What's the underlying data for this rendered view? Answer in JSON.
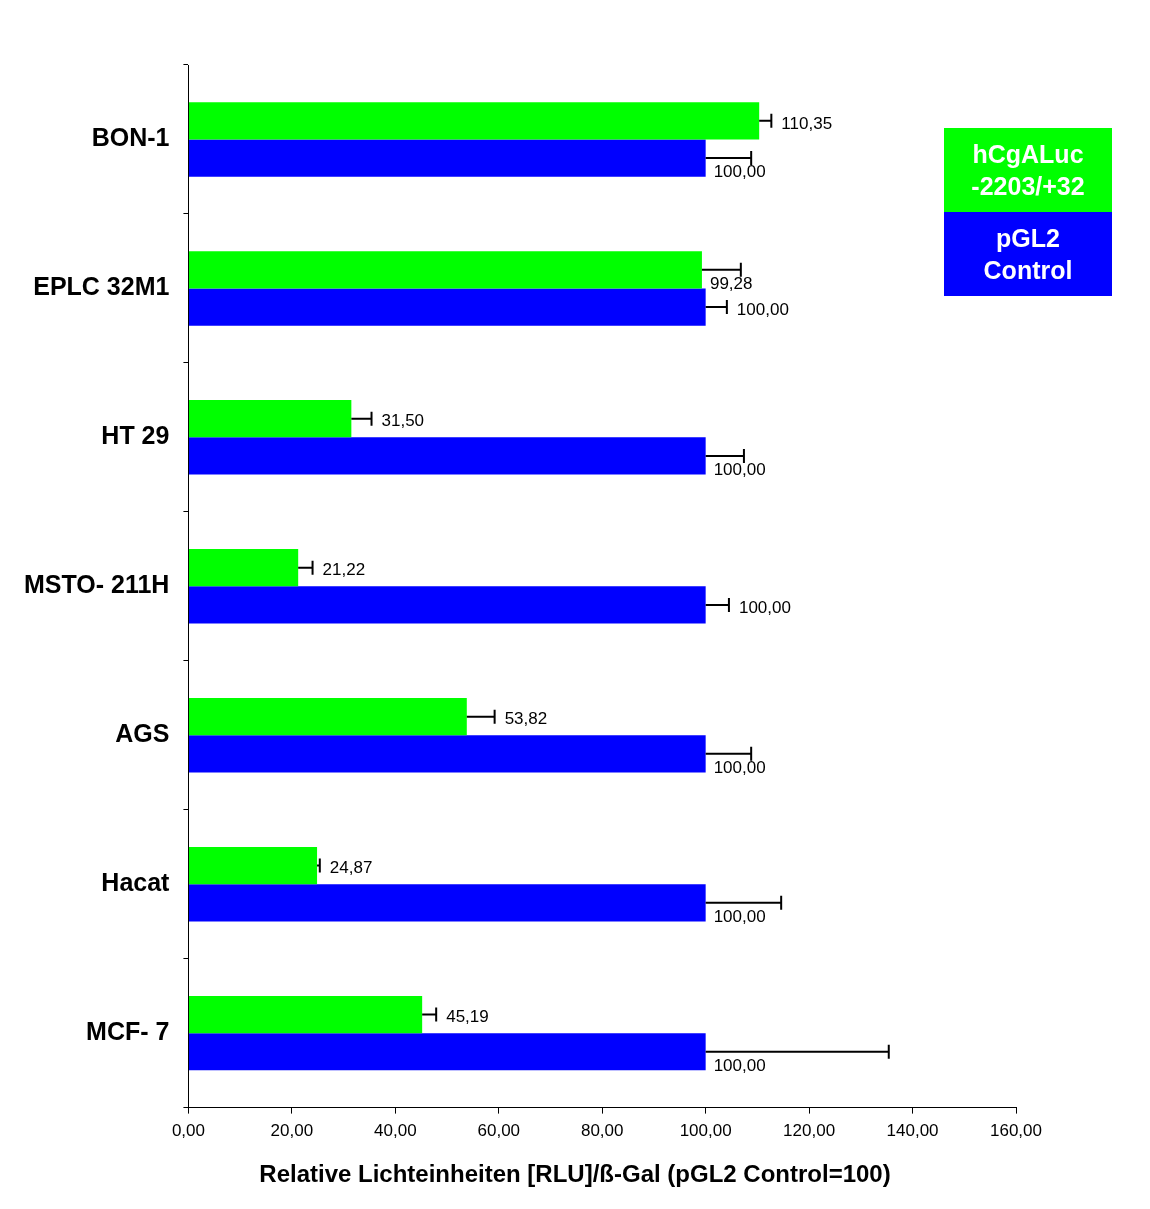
{
  "chart_data": {
    "type": "bar",
    "orientation": "horizontal",
    "xlabel": "Relative Lichteinheiten [RLU]/ß-Gal (pGL2 Control=100)",
    "categories": [
      "BON-1",
      "EPLC 32M1",
      "HT 29",
      "MSTO- 211H",
      "AGS",
      "Hacat",
      "MCF- 7"
    ],
    "series": [
      {
        "name": "hCgALuc -2203/+32",
        "color": "#00ff00",
        "values": [
          110.35,
          99.28,
          31.5,
          21.22,
          53.82,
          24.87,
          45.19
        ],
        "errors": [
          [
            110.35,
            112.7
          ],
          [
            99.28,
            106.8
          ],
          [
            31.5,
            35.4
          ],
          [
            21.22,
            24.0
          ],
          [
            53.82,
            59.2
          ],
          [
            24.87,
            25.4
          ],
          [
            45.19,
            47.9
          ]
        ],
        "value_labels": [
          "110,35",
          "99,28",
          "31,50",
          "21,22",
          "53,82",
          "24,87",
          "45,19"
        ]
      },
      {
        "name": "pGL2 Control",
        "color": "#0000ff",
        "values": [
          100,
          100,
          100,
          100,
          100,
          100,
          100
        ],
        "errors": [
          [
            100,
            108.8
          ],
          [
            100,
            104.1
          ],
          [
            100,
            107.4
          ],
          [
            100,
            104.5
          ],
          [
            100,
            108.8
          ],
          [
            100,
            114.6
          ],
          [
            100,
            135.4
          ]
        ],
        "value_labels": [
          "100,00",
          "100,00",
          "100,00",
          "100,00",
          "100,00",
          "100,00",
          "100,00"
        ]
      }
    ],
    "xlim": [
      0,
      160
    ],
    "xticks": [
      {
        "value": 0,
        "label": "0,00"
      },
      {
        "value": 20,
        "label": "20,00"
      },
      {
        "value": 40,
        "label": "40,00"
      },
      {
        "value": 60,
        "label": "60,00"
      },
      {
        "value": 80,
        "label": "80,00"
      },
      {
        "value": 100,
        "label": "100,00"
      },
      {
        "value": 120,
        "label": "120,00"
      },
      {
        "value": 140,
        "label": "140,00"
      },
      {
        "value": 160,
        "label": "160,00"
      }
    ],
    "grid": false,
    "legend": "top right"
  }
}
